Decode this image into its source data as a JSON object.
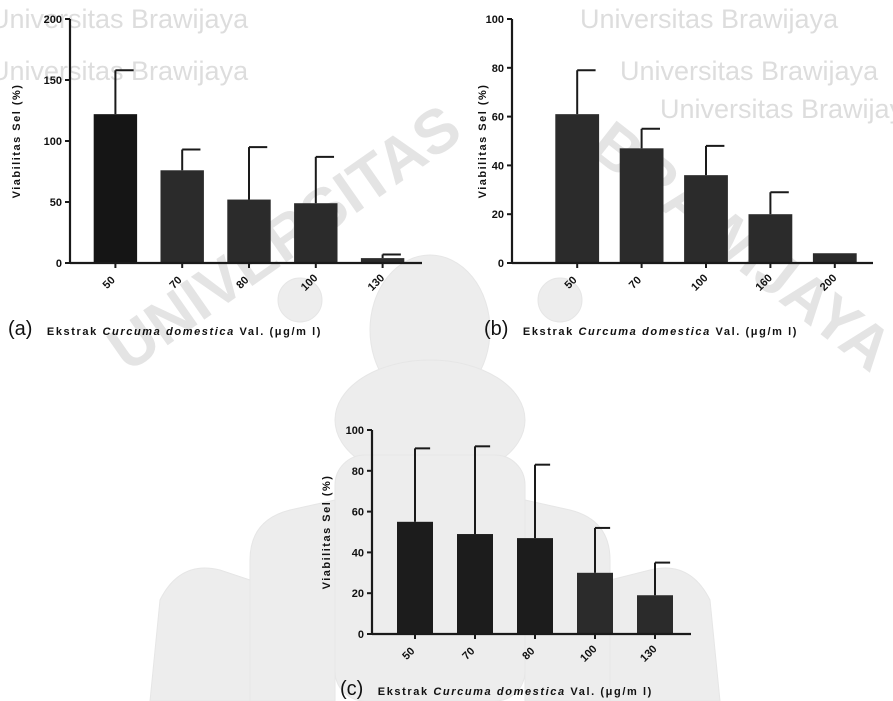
{
  "watermark": {
    "lines": [
      "Universitas Brawijaya",
      "Universitas Brawijaya",
      "Universitas Brawijaya",
      "Universitas Brawijaya",
      "Universitas Brawijaya"
    ],
    "arc": "BRAWIJAYA",
    "arc_prefix": "UNIVERSITAS"
  },
  "chart_data": [
    {
      "type": "bar",
      "panel": "(a)",
      "categories": [
        "50",
        "70",
        "80",
        "100",
        "130"
      ],
      "values": [
        122,
        76,
        52,
        49,
        4
      ],
      "errors": [
        36,
        17,
        43,
        38,
        3
      ],
      "yticks": [
        "0",
        "50",
        "100",
        "150",
        "200"
      ],
      "ylim": [
        0,
        200
      ],
      "ylabel": "Viabilitas Sel (%)",
      "xlabel": {
        "prefix": "Ekstrak ",
        "italic": "Curcuma domestica",
        "suffix": " Val. (μg/m l)"
      },
      "bar_colors": [
        "#151515",
        "#2b2b2b",
        "#2b2b2b",
        "#2b2b2b",
        "#2b2b2b"
      ]
    },
    {
      "type": "bar",
      "panel": "(b)",
      "categories": [
        "50",
        "70",
        "100",
        "160",
        "200"
      ],
      "values": [
        61,
        47,
        36,
        20,
        4
      ],
      "errors": [
        18,
        8,
        12,
        9,
        0
      ],
      "yticks": [
        "0",
        "20",
        "40",
        "60",
        "80",
        "100"
      ],
      "ylim": [
        0,
        100
      ],
      "ylabel": "Viabilitas Sel (%)",
      "xlabel": {
        "prefix": "Ekstrak ",
        "italic": "Curcuma domestica",
        "suffix": " Val. (μg/m l)"
      },
      "bar_colors": [
        "#2b2b2b",
        "#2b2b2b",
        "#2b2b2b",
        "#2b2b2b",
        "#2b2b2b"
      ]
    },
    {
      "type": "bar",
      "panel": "(c)",
      "categories": [
        "50",
        "70",
        "80",
        "100",
        "130"
      ],
      "values": [
        55,
        49,
        47,
        30,
        19
      ],
      "errors": [
        36,
        43,
        36,
        22,
        16
      ],
      "yticks": [
        "0",
        "20",
        "40",
        "60",
        "80",
        "100"
      ],
      "ylim": [
        0,
        100
      ],
      "ylabel": "Viabilitas Sel (%)",
      "xlabel": {
        "prefix": "Ekstrak ",
        "italic": "Curcuma domestica",
        "suffix": " Val. (μg/m l)"
      },
      "bar_colors": [
        "#1c1c1c",
        "#1c1c1c",
        "#1c1c1c",
        "#2b2b2b",
        "#2b2b2b"
      ]
    }
  ]
}
